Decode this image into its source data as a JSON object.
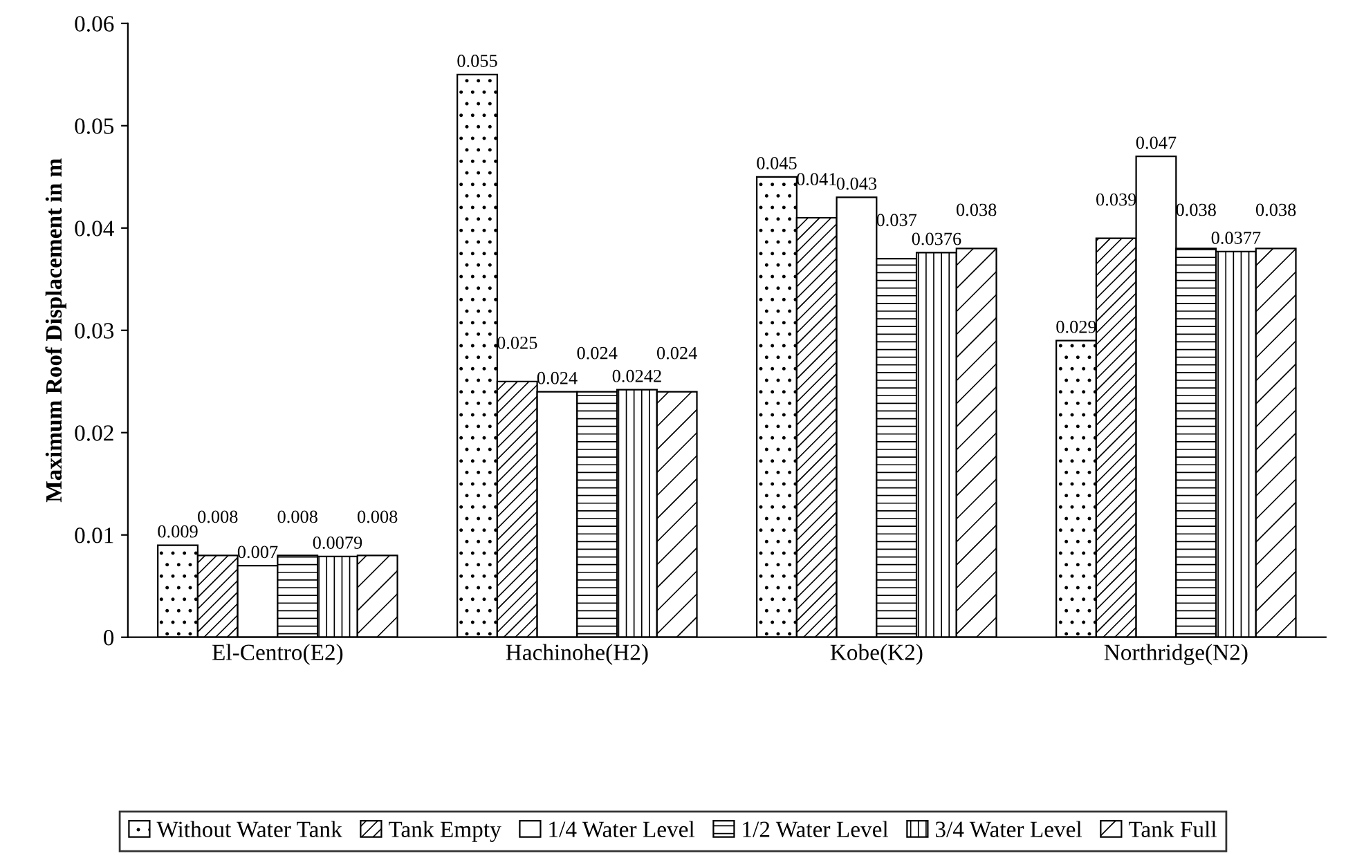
{
  "chart_data": {
    "type": "bar",
    "ylabel": "Maximum Roof Displacement in m",
    "categories": [
      "El-Centro(E2)",
      "Hachinohe(H2)",
      "Kobe(K2)",
      "Northridge(N2)"
    ],
    "series": [
      {
        "name": "Without Water Tank",
        "color": "#000000",
        "values": [
          0.009,
          0.055,
          0.045,
          0.029
        ]
      },
      {
        "name": "Tank Empty",
        "color": "#000000",
        "values": [
          0.008,
          0.025,
          0.041,
          0.039
        ]
      },
      {
        "name": "1/4 Water Level",
        "color": "#ffffff",
        "values": [
          0.007,
          0.024,
          0.043,
          0.047
        ]
      },
      {
        "name": "1/2 Water Level",
        "color": "#000000",
        "values": [
          0.008,
          0.024,
          0.037,
          0.038
        ]
      },
      {
        "name": "3/4 Water Level",
        "color": "#000000",
        "values": [
          0.0079,
          0.0242,
          0.0376,
          0.0377
        ]
      },
      {
        "name": "Tank Full",
        "color": "#000000",
        "values": [
          0.008,
          0.024,
          0.038,
          0.038
        ]
      }
    ],
    "ylim": [
      0,
      0.06
    ],
    "yticks": [
      0,
      0.01,
      0.02,
      0.03,
      0.04,
      0.05,
      0.06
    ],
    "data_labels": true,
    "grid": false,
    "legend": "bottom"
  }
}
